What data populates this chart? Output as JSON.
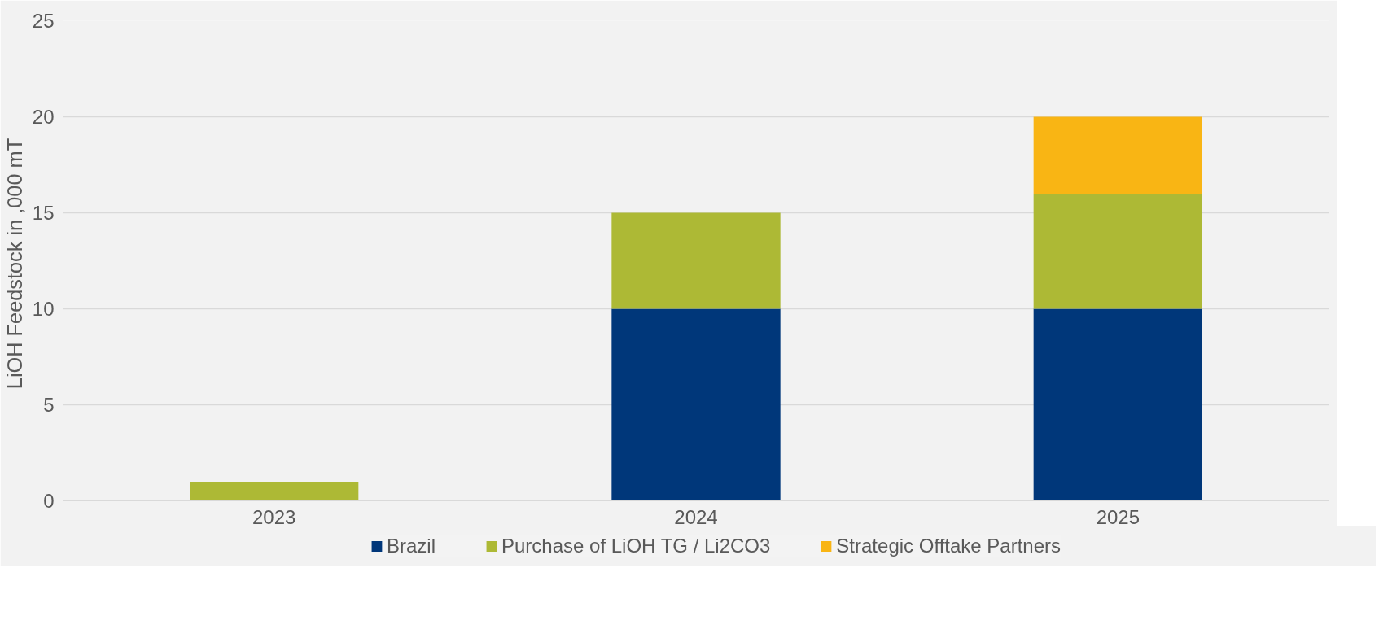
{
  "chart_data": {
    "type": "bar",
    "stacked": true,
    "ylabel": "LiOH Feedstock  in ,000 mT",
    "categories": [
      "2023",
      "2024",
      "2025"
    ],
    "series": [
      {
        "name": "Brazil",
        "color": "#00377a",
        "values": [
          0,
          10,
          10
        ]
      },
      {
        "name": "Purchase of LiOH TG / Li2CO3",
        "color": "#adb935",
        "values": [
          1,
          5,
          6
        ]
      },
      {
        "name": "Strategic Offtake Partners",
        "color": "#f9b514",
        "values": [
          0,
          0,
          4
        ]
      }
    ],
    "ylim": [
      0,
      25
    ],
    "yticks": [
      0,
      5,
      10,
      15,
      20,
      25
    ],
    "grid": "y",
    "legend": "bottom"
  }
}
